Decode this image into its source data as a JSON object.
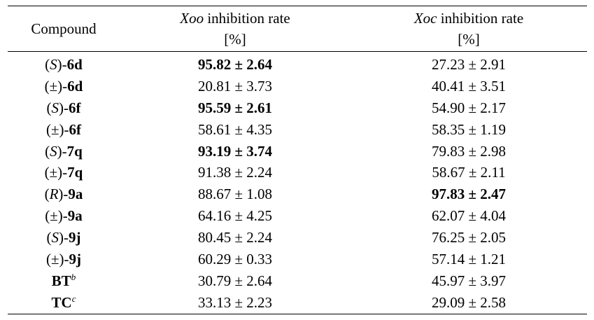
{
  "header": {
    "compound": "Compound",
    "xoo_name": "Xoo",
    "xoo_label": " inhibition rate",
    "xoo_unit": "[%]",
    "xoc_name": "Xoc",
    "xoc_label": " inhibition rate",
    "xoc_unit": "[%]"
  },
  "rows": [
    {
      "pre": "(",
      "stereo": "S",
      "post": ")-",
      "id": "6d",
      "sup": "",
      "xoo": "95.82 ± 2.64",
      "xoo_bold": true,
      "xoc": "27.23 ± 2.91",
      "xoc_bold": false
    },
    {
      "pre": "(±)-",
      "stereo": "",
      "post": "",
      "id": "6d",
      "sup": "",
      "xoo": "20.81 ± 3.73",
      "xoo_bold": false,
      "xoc": "40.41 ± 3.51",
      "xoc_bold": false
    },
    {
      "pre": "(",
      "stereo": "S",
      "post": ")-",
      "id": "6f",
      "sup": "",
      "xoo": "95.59 ± 2.61",
      "xoo_bold": true,
      "xoc": "54.90 ± 2.17",
      "xoc_bold": false
    },
    {
      "pre": "(±)-",
      "stereo": "",
      "post": "",
      "id": "6f",
      "sup": "",
      "xoo": "58.61 ± 4.35",
      "xoo_bold": false,
      "xoc": "58.35 ± 1.19",
      "xoc_bold": false
    },
    {
      "pre": "(",
      "stereo": "S",
      "post": ")-",
      "id": "7q",
      "sup": "",
      "xoo": "93.19 ± 3.74",
      "xoo_bold": true,
      "xoc": "79.83 ± 2.98",
      "xoc_bold": false
    },
    {
      "pre": "(±)-",
      "stereo": "",
      "post": "",
      "id": "7q",
      "sup": "",
      "xoo": "91.38 ± 2.24",
      "xoo_bold": false,
      "xoc": "58.67 ± 2.11",
      "xoc_bold": false
    },
    {
      "pre": "(",
      "stereo": "R",
      "post": ")-",
      "id": "9a",
      "sup": "",
      "xoo": "88.67 ± 1.08",
      "xoo_bold": false,
      "xoc": "97.83 ± 2.47",
      "xoc_bold": true
    },
    {
      "pre": "(±)-",
      "stereo": "",
      "post": "",
      "id": "9a",
      "sup": "",
      "xoo": "64.16 ± 4.25",
      "xoo_bold": false,
      "xoc": "62.07 ± 4.04",
      "xoc_bold": false
    },
    {
      "pre": "(",
      "stereo": "S",
      "post": ")-",
      "id": "9j",
      "sup": "",
      "xoo": "80.45 ± 2.24",
      "xoo_bold": false,
      "xoc": "76.25 ± 2.05",
      "xoc_bold": false
    },
    {
      "pre": "(±)-",
      "stereo": "",
      "post": "",
      "id": "9j",
      "sup": "",
      "xoo": "60.29 ± 0.33",
      "xoo_bold": false,
      "xoc": "57.14 ± 1.21",
      "xoc_bold": false
    },
    {
      "pre": "",
      "stereo": "",
      "post": "",
      "id": "BT",
      "sup": "b",
      "xoo": "30.79 ± 2.64",
      "xoo_bold": false,
      "xoc": "45.97 ± 3.97",
      "xoc_bold": false
    },
    {
      "pre": "",
      "stereo": "",
      "post": "",
      "id": "TC",
      "sup": "c",
      "xoo": "33.13 ± 2.23",
      "xoo_bold": false,
      "xoc": "29.09 ± 2.58",
      "xoc_bold": false
    }
  ]
}
